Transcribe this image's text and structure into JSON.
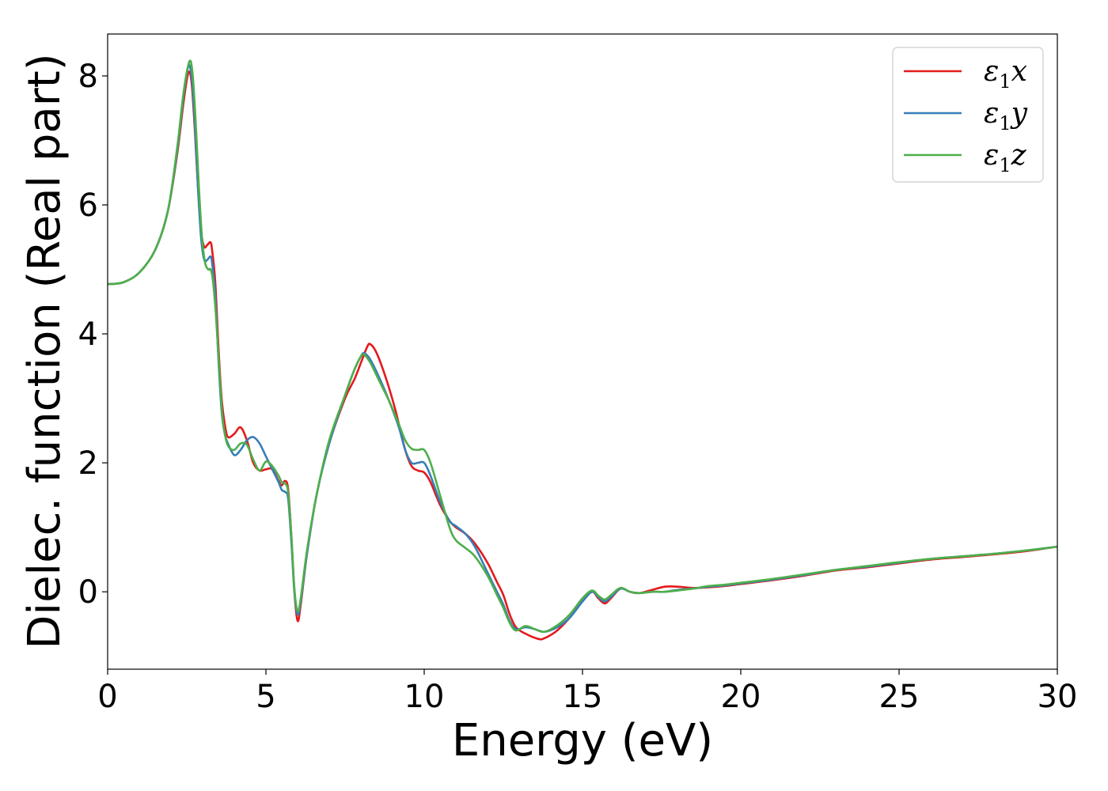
{
  "chart_data": {
    "type": "line",
    "title": "",
    "xlabel": "Energy (eV)",
    "ylabel": "Dielec. function (Real part)",
    "xlim": [
      0,
      30
    ],
    "ylim": [
      -1.2,
      8.65
    ],
    "xticks": [
      0,
      5,
      10,
      15,
      20,
      25,
      30
    ],
    "xtick_labels": [
      "0",
      "5",
      "10",
      "15",
      "20",
      "25",
      "30"
    ],
    "yticks": [
      0,
      2,
      4,
      6,
      8
    ],
    "ytick_labels": [
      "0",
      "2",
      "4",
      "6",
      "8"
    ],
    "grid": false,
    "legend_position": "top-right",
    "series": [
      {
        "name": "ε1x",
        "legend_base": "ε",
        "legend_sub": "1",
        "legend_suffix": "x",
        "color": "#e41a1c",
        "points": [
          [
            0,
            4.77
          ],
          [
            0.5,
            4.8
          ],
          [
            1.0,
            4.95
          ],
          [
            1.5,
            5.3
          ],
          [
            1.9,
            5.9
          ],
          [
            2.2,
            6.8
          ],
          [
            2.4,
            7.6
          ],
          [
            2.55,
            8.05
          ],
          [
            2.65,
            7.9
          ],
          [
            2.75,
            7.2
          ],
          [
            2.85,
            6.3
          ],
          [
            2.95,
            5.6
          ],
          [
            3.05,
            5.35
          ],
          [
            3.15,
            5.38
          ],
          [
            3.25,
            5.42
          ],
          [
            3.3,
            5.3
          ],
          [
            3.4,
            4.8
          ],
          [
            3.5,
            3.8
          ],
          [
            3.6,
            3.0
          ],
          [
            3.7,
            2.6
          ],
          [
            3.8,
            2.4
          ],
          [
            4.0,
            2.45
          ],
          [
            4.2,
            2.55
          ],
          [
            4.4,
            2.35
          ],
          [
            4.6,
            2.0
          ],
          [
            4.8,
            1.88
          ],
          [
            5.0,
            1.9
          ],
          [
            5.2,
            1.9
          ],
          [
            5.4,
            1.72
          ],
          [
            5.5,
            1.65
          ],
          [
            5.6,
            1.72
          ],
          [
            5.7,
            1.6
          ],
          [
            5.8,
            0.9
          ],
          [
            5.9,
            0.0
          ],
          [
            6.0,
            -0.45
          ],
          [
            6.1,
            -0.2
          ],
          [
            6.3,
            0.6
          ],
          [
            6.6,
            1.5
          ],
          [
            7.0,
            2.3
          ],
          [
            7.5,
            3.0
          ],
          [
            7.8,
            3.3
          ],
          [
            8.0,
            3.55
          ],
          [
            8.2,
            3.8
          ],
          [
            8.3,
            3.84
          ],
          [
            8.5,
            3.7
          ],
          [
            8.8,
            3.3
          ],
          [
            9.1,
            2.8
          ],
          [
            9.4,
            2.2
          ],
          [
            9.6,
            1.95
          ],
          [
            9.8,
            1.88
          ],
          [
            10.0,
            1.85
          ],
          [
            10.2,
            1.7
          ],
          [
            10.5,
            1.35
          ],
          [
            10.8,
            1.1
          ],
          [
            11.0,
            1.0
          ],
          [
            11.3,
            0.9
          ],
          [
            11.6,
            0.75
          ],
          [
            12.0,
            0.45
          ],
          [
            12.3,
            0.15
          ],
          [
            12.5,
            -0.05
          ],
          [
            12.7,
            -0.35
          ],
          [
            12.9,
            -0.55
          ],
          [
            13.2,
            -0.65
          ],
          [
            13.6,
            -0.73
          ],
          [
            13.8,
            -0.72
          ],
          [
            14.2,
            -0.6
          ],
          [
            14.6,
            -0.4
          ],
          [
            15.0,
            -0.15
          ],
          [
            15.3,
            0.0
          ],
          [
            15.5,
            -0.1
          ],
          [
            15.7,
            -0.18
          ],
          [
            15.9,
            -0.1
          ],
          [
            16.2,
            0.05
          ],
          [
            16.5,
            0.0
          ],
          [
            16.8,
            -0.02
          ],
          [
            17.2,
            0.03
          ],
          [
            17.6,
            0.08
          ],
          [
            18.0,
            0.08
          ],
          [
            18.5,
            0.06
          ],
          [
            19.0,
            0.07
          ],
          [
            19.5,
            0.09
          ],
          [
            20.0,
            0.12
          ],
          [
            21.0,
            0.18
          ],
          [
            22.0,
            0.25
          ],
          [
            23.0,
            0.33
          ],
          [
            24.0,
            0.38
          ],
          [
            25.0,
            0.44
          ],
          [
            26.0,
            0.5
          ],
          [
            27.0,
            0.54
          ],
          [
            28.0,
            0.58
          ],
          [
            29.0,
            0.63
          ],
          [
            30.0,
            0.7
          ]
        ]
      },
      {
        "name": "ε1y",
        "legend_base": "ε",
        "legend_sub": "1",
        "legend_suffix": "y",
        "color": "#377eb8",
        "points": [
          [
            0,
            4.77
          ],
          [
            0.5,
            4.8
          ],
          [
            1.0,
            4.95
          ],
          [
            1.5,
            5.3
          ],
          [
            1.9,
            5.9
          ],
          [
            2.2,
            6.85
          ],
          [
            2.4,
            7.7
          ],
          [
            2.55,
            8.15
          ],
          [
            2.65,
            8.0
          ],
          [
            2.75,
            7.3
          ],
          [
            2.85,
            6.3
          ],
          [
            2.95,
            5.5
          ],
          [
            3.05,
            5.15
          ],
          [
            3.15,
            5.15
          ],
          [
            3.25,
            5.2
          ],
          [
            3.3,
            5.1
          ],
          [
            3.4,
            4.6
          ],
          [
            3.5,
            3.6
          ],
          [
            3.6,
            2.8
          ],
          [
            3.7,
            2.45
          ],
          [
            3.8,
            2.3
          ],
          [
            4.0,
            2.12
          ],
          [
            4.2,
            2.2
          ],
          [
            4.4,
            2.35
          ],
          [
            4.6,
            2.4
          ],
          [
            4.8,
            2.3
          ],
          [
            5.0,
            2.1
          ],
          [
            5.2,
            1.9
          ],
          [
            5.4,
            1.7
          ],
          [
            5.5,
            1.58
          ],
          [
            5.6,
            1.55
          ],
          [
            5.7,
            1.45
          ],
          [
            5.8,
            0.8
          ],
          [
            5.9,
            0.0
          ],
          [
            6.0,
            -0.35
          ],
          [
            6.1,
            -0.15
          ],
          [
            6.3,
            0.6
          ],
          [
            6.6,
            1.5
          ],
          [
            7.0,
            2.3
          ],
          [
            7.5,
            3.05
          ],
          [
            7.8,
            3.45
          ],
          [
            8.0,
            3.65
          ],
          [
            8.1,
            3.7
          ],
          [
            8.3,
            3.6
          ],
          [
            8.6,
            3.3
          ],
          [
            8.9,
            2.95
          ],
          [
            9.2,
            2.55
          ],
          [
            9.4,
            2.2
          ],
          [
            9.6,
            2.0
          ],
          [
            9.8,
            2.0
          ],
          [
            10.0,
            2.0
          ],
          [
            10.2,
            1.8
          ],
          [
            10.5,
            1.4
          ],
          [
            10.8,
            1.1
          ],
          [
            11.0,
            1.02
          ],
          [
            11.3,
            0.9
          ],
          [
            11.6,
            0.7
          ],
          [
            12.0,
            0.3
          ],
          [
            12.3,
            0.0
          ],
          [
            12.5,
            -0.2
          ],
          [
            12.7,
            -0.45
          ],
          [
            12.9,
            -0.58
          ],
          [
            13.2,
            -0.55
          ],
          [
            13.5,
            -0.58
          ],
          [
            13.8,
            -0.62
          ],
          [
            14.2,
            -0.55
          ],
          [
            14.6,
            -0.4
          ],
          [
            15.0,
            -0.15
          ],
          [
            15.3,
            0.0
          ],
          [
            15.5,
            -0.08
          ],
          [
            15.7,
            -0.15
          ],
          [
            15.9,
            -0.08
          ],
          [
            16.2,
            0.05
          ],
          [
            16.5,
            0.0
          ],
          [
            16.8,
            -0.02
          ],
          [
            17.2,
            0.0
          ],
          [
            17.6,
            0.0
          ],
          [
            18.0,
            0.03
          ],
          [
            18.5,
            0.05
          ],
          [
            19.0,
            0.08
          ],
          [
            19.5,
            0.1
          ],
          [
            20.0,
            0.13
          ],
          [
            21.0,
            0.19
          ],
          [
            22.0,
            0.26
          ],
          [
            23.0,
            0.34
          ],
          [
            24.0,
            0.39
          ],
          [
            25.0,
            0.45
          ],
          [
            26.0,
            0.51
          ],
          [
            27.0,
            0.55
          ],
          [
            28.0,
            0.59
          ],
          [
            29.0,
            0.64
          ],
          [
            30.0,
            0.7
          ]
        ]
      },
      {
        "name": "ε1z",
        "legend_base": "ε",
        "legend_sub": "1",
        "legend_suffix": "z",
        "color": "#4daf4a",
        "points": [
          [
            0,
            4.77
          ],
          [
            0.5,
            4.8
          ],
          [
            1.0,
            4.95
          ],
          [
            1.5,
            5.3
          ],
          [
            1.9,
            5.9
          ],
          [
            2.2,
            6.9
          ],
          [
            2.4,
            7.75
          ],
          [
            2.58,
            8.22
          ],
          [
            2.68,
            8.05
          ],
          [
            2.78,
            7.3
          ],
          [
            2.88,
            6.3
          ],
          [
            2.98,
            5.5
          ],
          [
            3.08,
            5.1
          ],
          [
            3.18,
            5.0
          ],
          [
            3.25,
            5.0
          ],
          [
            3.32,
            4.85
          ],
          [
            3.42,
            4.3
          ],
          [
            3.52,
            3.5
          ],
          [
            3.62,
            2.75
          ],
          [
            3.72,
            2.4
          ],
          [
            3.82,
            2.25
          ],
          [
            4.0,
            2.2
          ],
          [
            4.2,
            2.3
          ],
          [
            4.4,
            2.28
          ],
          [
            4.6,
            2.05
          ],
          [
            4.8,
            1.88
          ],
          [
            5.0,
            2.02
          ],
          [
            5.2,
            1.95
          ],
          [
            5.4,
            1.8
          ],
          [
            5.5,
            1.7
          ],
          [
            5.6,
            1.68
          ],
          [
            5.7,
            1.55
          ],
          [
            5.8,
            0.9
          ],
          [
            5.9,
            0.05
          ],
          [
            6.0,
            -0.3
          ],
          [
            6.1,
            -0.1
          ],
          [
            6.3,
            0.65
          ],
          [
            6.6,
            1.5
          ],
          [
            7.0,
            2.35
          ],
          [
            7.5,
            3.05
          ],
          [
            7.8,
            3.45
          ],
          [
            8.0,
            3.65
          ],
          [
            8.1,
            3.68
          ],
          [
            8.3,
            3.55
          ],
          [
            8.6,
            3.25
          ],
          [
            8.9,
            2.95
          ],
          [
            9.2,
            2.6
          ],
          [
            9.4,
            2.35
          ],
          [
            9.6,
            2.22
          ],
          [
            9.8,
            2.2
          ],
          [
            10.0,
            2.2
          ],
          [
            10.2,
            2.0
          ],
          [
            10.5,
            1.5
          ],
          [
            10.8,
            1.0
          ],
          [
            11.0,
            0.8
          ],
          [
            11.3,
            0.68
          ],
          [
            11.6,
            0.55
          ],
          [
            12.0,
            0.25
          ],
          [
            12.3,
            -0.05
          ],
          [
            12.5,
            -0.25
          ],
          [
            12.7,
            -0.48
          ],
          [
            12.9,
            -0.6
          ],
          [
            13.2,
            -0.53
          ],
          [
            13.5,
            -0.58
          ],
          [
            13.8,
            -0.62
          ],
          [
            14.2,
            -0.52
          ],
          [
            14.6,
            -0.35
          ],
          [
            15.0,
            -0.1
          ],
          [
            15.3,
            0.02
          ],
          [
            15.5,
            -0.06
          ],
          [
            15.7,
            -0.12
          ],
          [
            15.9,
            -0.05
          ],
          [
            16.2,
            0.06
          ],
          [
            16.5,
            0.0
          ],
          [
            16.8,
            -0.02
          ],
          [
            17.2,
            0.0
          ],
          [
            17.6,
            0.0
          ],
          [
            18.0,
            0.02
          ],
          [
            18.5,
            0.05
          ],
          [
            19.0,
            0.09
          ],
          [
            19.5,
            0.11
          ],
          [
            20.0,
            0.14
          ],
          [
            21.0,
            0.2
          ],
          [
            22.0,
            0.27
          ],
          [
            23.0,
            0.34
          ],
          [
            24.0,
            0.4
          ],
          [
            25.0,
            0.46
          ],
          [
            26.0,
            0.51
          ],
          [
            27.0,
            0.55
          ],
          [
            28.0,
            0.59
          ],
          [
            29.0,
            0.64
          ],
          [
            30.0,
            0.7
          ]
        ]
      }
    ]
  }
}
